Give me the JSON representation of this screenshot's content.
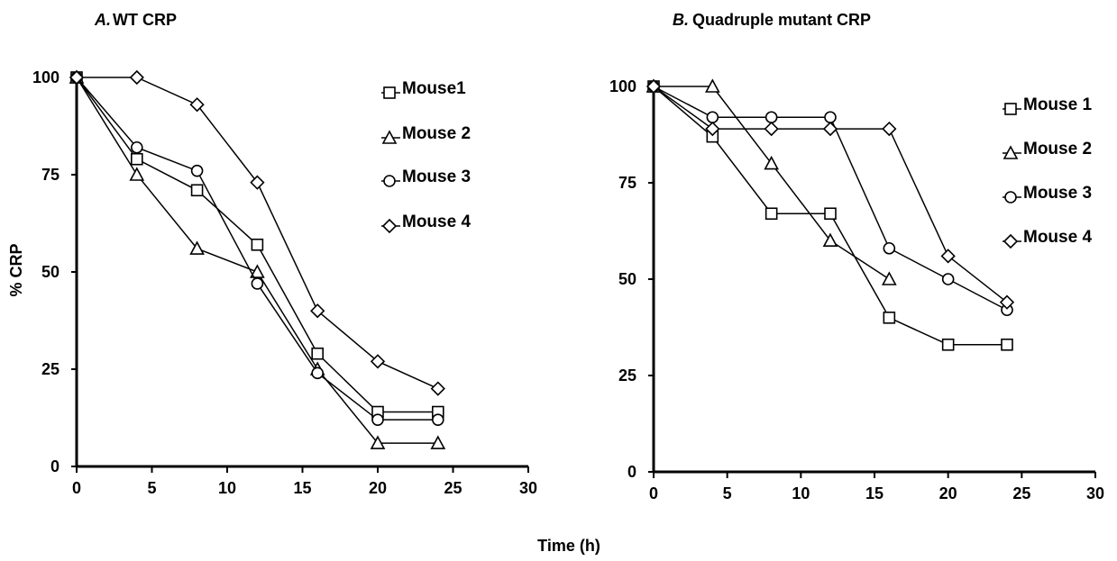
{
  "panels": [
    {
      "letter": "A.",
      "title": "WT CRP"
    },
    {
      "letter": "B.",
      "title": "Quadruple mutant CRP"
    }
  ],
  "ylabel": "% CRP",
  "xlabel": "Time (h)",
  "chart_data": [
    {
      "type": "line",
      "title": "A. WT CRP",
      "xlabel": "Time (h)",
      "ylabel": "% CRP",
      "xlim": [
        0,
        30
      ],
      "ylim": [
        0,
        100
      ],
      "xticks": [
        0,
        5,
        10,
        15,
        20,
        25,
        30
      ],
      "yticks": [
        0,
        25,
        50,
        75,
        100
      ],
      "grid": false,
      "legend_position": "top-right",
      "series": [
        {
          "name": "Mouse1",
          "marker": "square",
          "x": [
            0,
            4,
            8,
            12,
            16,
            20,
            24
          ],
          "y": [
            100,
            79,
            71,
            57,
            29,
            14,
            14
          ]
        },
        {
          "name": "Mouse 2",
          "marker": "triangle",
          "x": [
            0,
            4,
            8,
            12,
            16,
            20,
            24
          ],
          "y": [
            100,
            75,
            56,
            50,
            25,
            6,
            6
          ]
        },
        {
          "name": "Mouse 3",
          "marker": "circle",
          "x": [
            0,
            4,
            8,
            12,
            16,
            20,
            24
          ],
          "y": [
            100,
            82,
            76,
            47,
            24,
            12,
            12
          ]
        },
        {
          "name": "Mouse 4",
          "marker": "diamond",
          "x": [
            0,
            4,
            8,
            12,
            16,
            20,
            24
          ],
          "y": [
            100,
            100,
            93,
            73,
            40,
            27,
            20
          ]
        }
      ]
    },
    {
      "type": "line",
      "title": "B. Quadruple mutant CRP",
      "xlabel": "Time (h)",
      "ylabel": "% CRP",
      "xlim": [
        0,
        30
      ],
      "ylim": [
        0,
        100
      ],
      "xticks": [
        0,
        5,
        10,
        15,
        20,
        25,
        30
      ],
      "yticks": [
        0,
        25,
        50,
        75,
        100
      ],
      "grid": false,
      "legend_position": "top-right",
      "series": [
        {
          "name": "Mouse 1",
          "marker": "square",
          "x": [
            0,
            4,
            8,
            12,
            16,
            20,
            24
          ],
          "y": [
            100,
            87,
            67,
            67,
            40,
            33,
            33
          ]
        },
        {
          "name": "Mouse 2",
          "marker": "triangle",
          "x": [
            0,
            4,
            8,
            12,
            16
          ],
          "y": [
            100,
            100,
            80,
            60,
            50
          ]
        },
        {
          "name": "Mouse 3",
          "marker": "circle",
          "x": [
            0,
            4,
            8,
            12,
            16,
            20,
            24
          ],
          "y": [
            100,
            92,
            92,
            92,
            58,
            50,
            42
          ]
        },
        {
          "name": "Mouse 4",
          "marker": "diamond",
          "x": [
            0,
            4,
            8,
            12,
            16,
            20,
            24
          ],
          "y": [
            100,
            89,
            89,
            89,
            89,
            56,
            44
          ]
        }
      ]
    }
  ]
}
